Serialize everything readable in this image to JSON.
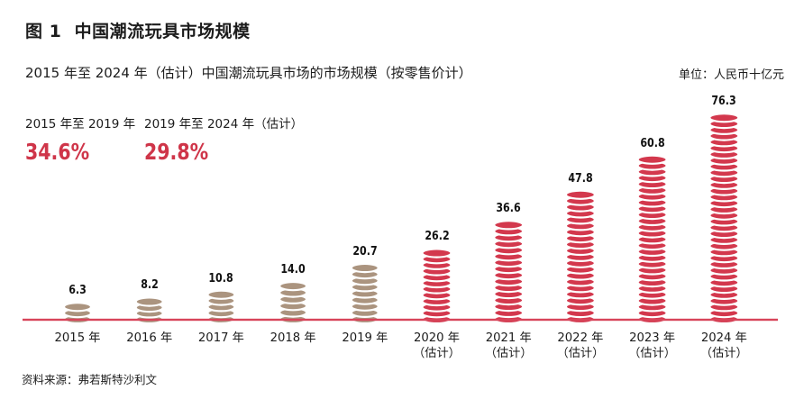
{
  "header": {
    "figure_title": "图 1  中国潮流玩具市场规模",
    "subtitle": "2015 年至 2024 年（估计）中国潮流玩具市场的市场规模（按零售价计）",
    "unit": "单位：人民币十亿元"
  },
  "cagr": {
    "periods": [
      {
        "label": "2015 年至 2019 年",
        "value": "34.6%"
      },
      {
        "label": "2019 年至 2024 年（估计）",
        "value": "29.8%"
      }
    ]
  },
  "chart_data": {
    "type": "bar",
    "title": "图 1  中国潮流玩具市场规模",
    "subtitle": "2015 年至 2024 年（估计）中国潮流玩具市场的市场规模（按零售价计）",
    "ylabel": "人民币十亿元",
    "xlabel": "",
    "categories": [
      {
        "year": "2015 年",
        "note": ""
      },
      {
        "year": "2016 年",
        "note": ""
      },
      {
        "year": "2017 年",
        "note": ""
      },
      {
        "year": "2018 年",
        "note": ""
      },
      {
        "year": "2019 年",
        "note": ""
      },
      {
        "year": "2020 年",
        "note": "（估计）"
      },
      {
        "year": "2021 年",
        "note": "（估计）"
      },
      {
        "year": "2022 年",
        "note": "（估计）"
      },
      {
        "year": "2023 年",
        "note": "（估计）"
      },
      {
        "year": "2024 年",
        "note": "（估计）"
      }
    ],
    "values": [
      6.3,
      8.2,
      10.8,
      14.0,
      20.7,
      26.2,
      36.6,
      47.8,
      60.8,
      76.3
    ],
    "value_labels": [
      "6.3",
      "8.2",
      "10.8",
      "14.0",
      "20.7",
      "26.2",
      "36.6",
      "47.8",
      "60.8",
      "76.3"
    ],
    "historical_count": 5,
    "colors": {
      "historical": "#ab947f",
      "estimate": "#d3384d",
      "axis_line": "#d8455a",
      "accent_text": "#cf3549"
    },
    "ylim": [
      0,
      80
    ],
    "grid": false,
    "legend": false,
    "bar_style": "coin-stack"
  },
  "footer": {
    "source": "资料来源：弗若斯特沙利文"
  }
}
